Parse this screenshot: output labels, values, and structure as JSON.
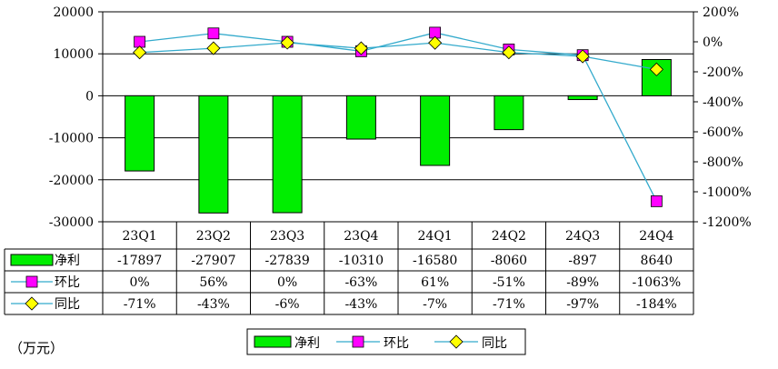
{
  "unit_label": "（万元）",
  "colors": {
    "bar": "#00ee00",
    "bar_border": "#000000",
    "line1": "#33aacc",
    "marker1": "#ff00ff",
    "line2": "#33aacc",
    "marker2": "#ffff00"
  },
  "chart_data": {
    "type": "bar",
    "categories": [
      "23Q1",
      "23Q2",
      "23Q3",
      "23Q4",
      "24Q1",
      "24Q2",
      "24Q3",
      "24Q4"
    ],
    "series": [
      {
        "name": "净利",
        "type": "bar",
        "axis": "left",
        "values": [
          -17897,
          -27907,
          -27839,
          -10310,
          -16580,
          -8060,
          -897,
          8640
        ],
        "labels": [
          "-17897",
          "-27907",
          "-27839",
          "-10310",
          "-16580",
          "-8060",
          "-897",
          "8640"
        ]
      },
      {
        "name": "环比",
        "type": "line",
        "axis": "right",
        "values": [
          0,
          56,
          0,
          -63,
          61,
          -51,
          -89,
          -1063
        ],
        "labels": [
          "0%",
          "56%",
          "0%",
          "-63%",
          "61%",
          "-51%",
          "-89%",
          "-1063%"
        ]
      },
      {
        "name": "同比",
        "type": "line",
        "axis": "right",
        "values": [
          -71,
          -43,
          -6,
          -43,
          -7,
          -71,
          -97,
          -184
        ],
        "labels": [
          "-71%",
          "-43%",
          "-6%",
          "-43%",
          "-7%",
          "-71%",
          "-97%",
          "-184%"
        ]
      }
    ],
    "y_left": {
      "ylim": [
        -30000,
        20000
      ],
      "ticks": [
        "20000",
        "10000",
        "0",
        "-10000",
        "-20000",
        "-30000"
      ]
    },
    "y_right": {
      "ylim": [
        -1200,
        200
      ],
      "ticks": [
        "200%",
        "0%",
        "-200%",
        "-400%",
        "-600%",
        "-800%",
        "-1000%",
        "-1200%"
      ]
    },
    "grid": true,
    "legend": "bottom"
  }
}
